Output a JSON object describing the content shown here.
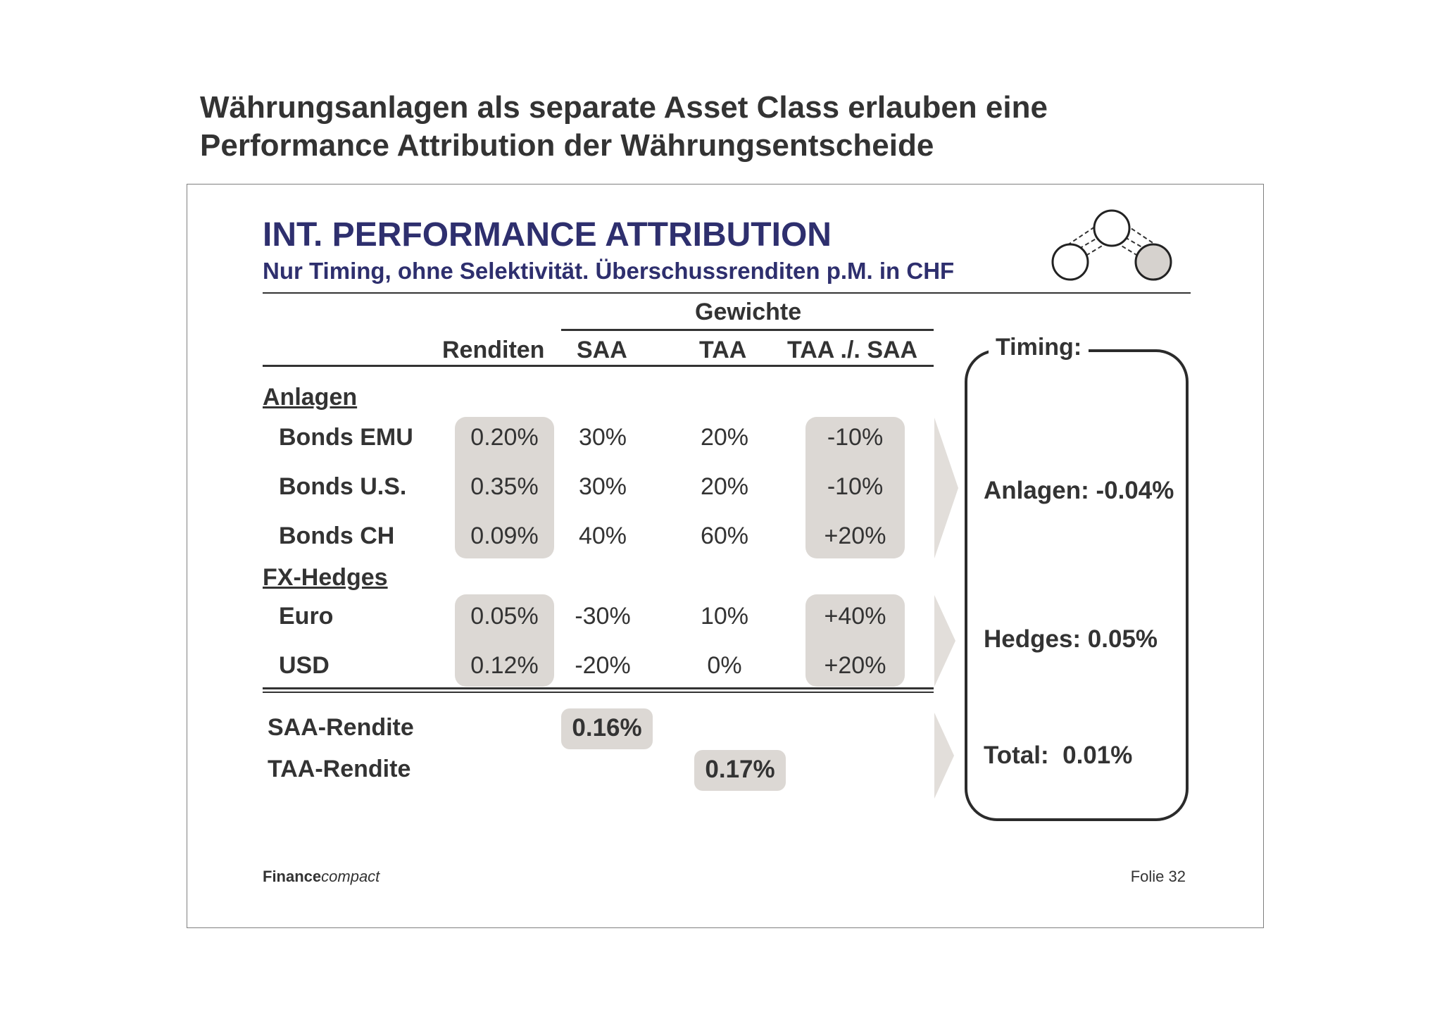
{
  "heading": {
    "line1": "Währungsanlagen als separate Asset Class erlauben eine",
    "line2": "Performance Attribution der Währungsentscheide"
  },
  "slide": {
    "title": "INT. PERFORMANCE ATTRIBUTION",
    "subtitle": "Nur Timing, ohne Selektivität. Überschussrenditen p.M. in CHF"
  },
  "table": {
    "group_header": "Gewichte",
    "columns": [
      "Renditen",
      "SAA",
      "TAA",
      "TAA ./. SAA"
    ],
    "sections": [
      {
        "label": "Anlagen",
        "rows": [
          {
            "name": "Bonds EMU",
            "rendite": "0.20%",
            "saa": "30%",
            "taa": "20%",
            "diff": "-10%"
          },
          {
            "name": "Bonds U.S.",
            "rendite": "0.35%",
            "saa": "30%",
            "taa": "20%",
            "diff": "-10%"
          },
          {
            "name": "Bonds CH",
            "rendite": "0.09%",
            "saa": "40%",
            "taa": "60%",
            "diff": "+20%"
          }
        ]
      },
      {
        "label": "FX-Hedges",
        "rows": [
          {
            "name": "Euro",
            "rendite": "0.05%",
            "saa": "-30%",
            "taa": "10%",
            "diff": "+40%"
          },
          {
            "name": "USD",
            "rendite": "0.12%",
            "saa": "-20%",
            "taa": "0%",
            "diff": "+20%"
          }
        ]
      }
    ],
    "results": [
      {
        "label": "SAA-Rendite",
        "value": "0.16%"
      },
      {
        "label": "TAA-Rendite",
        "value": "0.17%"
      }
    ]
  },
  "timing": {
    "title": "Timing:",
    "anlagen": "Anlagen: -0.04%",
    "hedges": "Hedges: 0.05%",
    "total": "Total:  0.01%"
  },
  "footer": {
    "brand_bold": "Finance",
    "brand_italic": "compact",
    "page": "Folie 32"
  },
  "icons": {
    "logo": "three-circles-network-icon",
    "arrows": "chevron-right-icon"
  },
  "colors": {
    "title_blue": "#2e2f6e",
    "text": "#333333",
    "shade": "#dcd8d4",
    "arrow": "#e2deda"
  }
}
